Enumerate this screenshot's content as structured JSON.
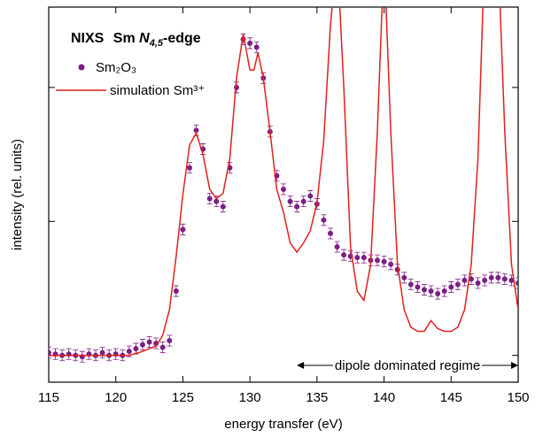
{
  "chart_data": {
    "type": "scatter-line",
    "title_parts": [
      "NIXS",
      "Sm",
      "N",
      "4,5",
      "-edge"
    ],
    "xlabel": "energy transfer (eV)",
    "ylabel": "intensity (rel. units)",
    "annotation": "dipole dominated regime",
    "annotation_range": [
      133.5,
      150
    ],
    "xlim": [
      115,
      150
    ],
    "xticks": [
      115,
      120,
      125,
      130,
      135,
      140,
      145,
      150
    ],
    "ylim": [
      -0.2,
      2.6
    ],
    "yticks": [
      0,
      1,
      2
    ],
    "series": [
      {
        "name": "Sm₂O₃",
        "color": "#7b1f86",
        "kind": "points",
        "error": 0.04,
        "x": [
          115,
          115.5,
          116,
          116.5,
          117,
          117.5,
          118,
          118.5,
          119,
          119.5,
          120,
          120.5,
          121,
          121.5,
          122,
          122.5,
          123,
          123.5,
          124,
          124.5,
          125,
          125.5,
          126,
          126.5,
          127,
          127.5,
          128,
          128.5,
          129,
          129.5,
          130,
          130.5,
          131,
          131.5,
          132,
          132.5,
          133,
          133.5,
          134,
          134.5,
          135,
          135.5,
          136,
          136.5,
          137,
          137.5,
          138,
          138.5,
          139,
          139.5,
          140,
          140.5,
          141,
          141.5,
          142,
          142.5,
          143,
          143.5,
          144,
          144.5,
          145,
          145.5,
          146,
          146.5,
          147,
          147.5,
          148,
          148.5,
          149,
          149.5,
          150
        ],
        "values": [
          0.02,
          0.01,
          0.0,
          0.01,
          0.0,
          -0.01,
          0.01,
          0.0,
          0.02,
          0.0,
          0.01,
          0.0,
          0.03,
          0.05,
          0.08,
          0.1,
          0.09,
          0.06,
          0.11,
          0.48,
          0.94,
          1.4,
          1.68,
          1.54,
          1.17,
          1.15,
          1.11,
          1.4,
          2.0,
          2.36,
          2.33,
          2.3,
          2.07,
          1.67,
          1.34,
          1.24,
          1.15,
          1.11,
          1.15,
          1.19,
          1.13,
          1.01,
          0.91,
          0.81,
          0.75,
          0.74,
          0.73,
          0.73,
          0.71,
          0.71,
          0.7,
          0.68,
          0.64,
          0.58,
          0.53,
          0.51,
          0.49,
          0.48,
          0.46,
          0.48,
          0.51,
          0.53,
          0.56,
          0.57,
          0.54,
          0.56,
          0.58,
          0.58,
          0.57,
          0.56,
          0.54
        ]
      },
      {
        "name": "simulation Sm³⁺",
        "color": "#e0201c",
        "kind": "line",
        "x": [
          115,
          117,
          119,
          121,
          122,
          123,
          123.5,
          124,
          124.5,
          125,
          125.5,
          126,
          126.5,
          127,
          127.5,
          128,
          128.5,
          129,
          129.5,
          130,
          130.3,
          130.6,
          131,
          131.5,
          132,
          132.5,
          133,
          133.5,
          134,
          134.5,
          135,
          135.5,
          136,
          136.5,
          137,
          137.5,
          138,
          138.5,
          139,
          139.5,
          140,
          140.5,
          141,
          141.5,
          142,
          142.5,
          143,
          143.5,
          144,
          144.5,
          145,
          145.5,
          146,
          146.5,
          147,
          147.5,
          148.5,
          149,
          149.5,
          150
        ],
        "values": [
          0,
          0,
          0,
          0,
          0.03,
          0.07,
          0.15,
          0.34,
          0.74,
          1.2,
          1.57,
          1.66,
          1.5,
          1.24,
          1.17,
          1.21,
          1.47,
          2.07,
          2.4,
          2.13,
          2.13,
          2.26,
          2.07,
          1.67,
          1.24,
          1.07,
          0.84,
          0.77,
          0.84,
          0.93,
          1.14,
          1.6,
          2.46,
          3.0,
          2.0,
          0.81,
          0.48,
          0.41,
          0.68,
          1.67,
          3.0,
          1.67,
          0.68,
          0.34,
          0.21,
          0.18,
          0.18,
          0.26,
          0.2,
          0.18,
          0.18,
          0.21,
          0.34,
          0.68,
          1.47,
          3.0,
          3.0,
          1.67,
          0.68,
          0.34
        ]
      }
    ]
  }
}
